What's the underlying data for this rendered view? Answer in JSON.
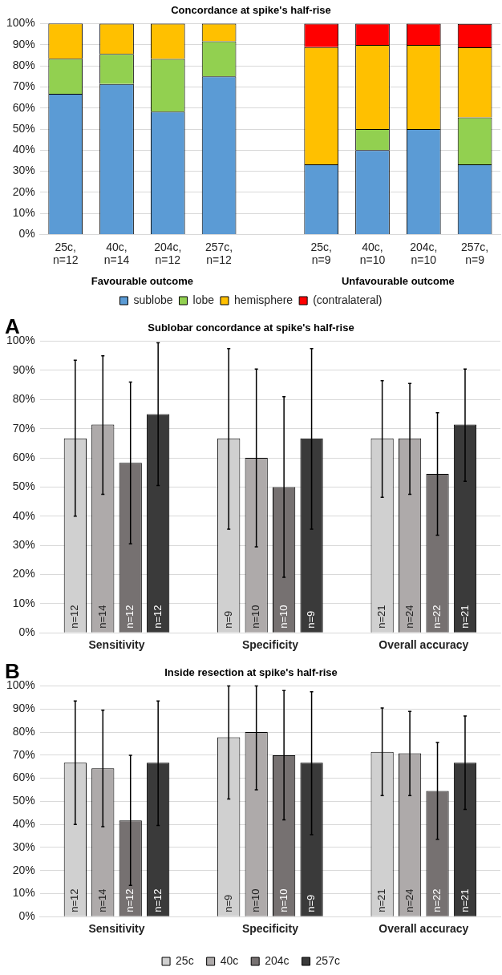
{
  "chart_data": [
    {
      "type": "bar",
      "title": "Concordance at spike's half-rise",
      "stacked": true,
      "grid": "y",
      "legend": "bottom",
      "categories": [
        "25c, n=12",
        "40c, n=14",
        "204c, n=12",
        "257c, n=12",
        null,
        "25c, n=9",
        "40c, n=10",
        "204c, n=10",
        "257c, n=9"
      ],
      "series": [
        {
          "name": "sublobe",
          "color": "#5b9bd5",
          "values": [
            66.7,
            71.4,
            58.3,
            75,
            null,
            33.3,
            40,
            50,
            33.3
          ]
        },
        {
          "name": "lobe",
          "color": "#92d050",
          "values": [
            16.7,
            14.3,
            25,
            16.7,
            null,
            0,
            10,
            0,
            22.2
          ]
        },
        {
          "name": "hemisphere",
          "color": "#ffc000",
          "values": [
            16.7,
            14.3,
            16.7,
            8.3,
            null,
            55.6,
            40,
            40,
            33.3
          ]
        },
        {
          "name": "(contralateral)",
          "color": "#ff0000",
          "values": [
            0,
            0,
            0,
            0,
            null,
            11.1,
            10,
            10,
            11.1
          ]
        }
      ],
      "ylim": [
        0,
        100
      ],
      "yticks": [
        {
          "value": 0,
          "label": "0%"
        },
        {
          "value": 10,
          "label": "10%"
        },
        {
          "value": 20,
          "label": "20%"
        },
        {
          "value": 30,
          "label": "30%"
        },
        {
          "value": 40,
          "label": "40%"
        },
        {
          "value": 50,
          "label": "50%"
        },
        {
          "value": 60,
          "label": "60%"
        },
        {
          "value": 70,
          "label": "70%"
        },
        {
          "value": 80,
          "label": "80%"
        },
        {
          "value": 90,
          "label": "90%"
        },
        {
          "value": 100,
          "label": "100%"
        }
      ],
      "annotations": [
        "Favourable outcome",
        "Unfavourable outcome"
      ]
    },
    {
      "type": "bar",
      "title": "Sublobar concordance at spike's half-rise",
      "grid": "y",
      "categories": [
        "Sensitivity",
        "Specificity",
        "Overall accuracy"
      ],
      "series": [
        {
          "color": "#d0d0d0",
          "values": [
            66.7,
            66.7,
            66.7
          ],
          "errors": [
            [
              40,
              93.5
            ],
            [
              35.5,
              97.5
            ],
            [
              46.5,
              86.5
            ]
          ]
        },
        {
          "color": "#aeaaaa",
          "values": [
            71.4,
            60,
            66.7
          ],
          "errors": [
            [
              47.5,
              95
            ],
            [
              29.5,
              90.5
            ],
            [
              47.5,
              85.5
            ]
          ]
        },
        {
          "color": "#767171",
          "values": [
            58.3,
            50,
            54.5
          ],
          "errors": [
            [
              30.5,
              86
            ],
            [
              19,
              81
            ],
            [
              33.5,
              75.5
            ]
          ]
        },
        {
          "color": "#3a3a3a",
          "values": [
            75,
            66.7,
            71.4
          ],
          "errors": [
            [
              50.5,
              99.5
            ],
            [
              35.5,
              97.5
            ],
            [
              52,
              90.5
            ]
          ]
        }
      ],
      "ylim": [
        0,
        100
      ],
      "yticks": [
        {
          "value": 0,
          "label": "0%"
        },
        {
          "value": 10,
          "label": "10%"
        },
        {
          "value": 20,
          "label": "20%"
        },
        {
          "value": 30,
          "label": "30%"
        },
        {
          "value": 40,
          "label": "40%"
        },
        {
          "value": 50,
          "label": "50%"
        },
        {
          "value": 60,
          "label": "60%"
        },
        {
          "value": 70,
          "label": "70%"
        },
        {
          "value": 80,
          "label": "80%"
        },
        {
          "value": 90,
          "label": "90%"
        },
        {
          "value": 100,
          "label": "100%"
        }
      ],
      "annotations": [
        "A",
        "n=12",
        "n=14",
        "n=12",
        "n=12",
        "n=9",
        "n=10",
        "n=10",
        "n=9",
        "n=21",
        "n=24",
        "n=22",
        "n=21"
      ]
    },
    {
      "type": "bar",
      "title": "Inside resection at spike's half-rise",
      "grid": "y",
      "legend": "bottom",
      "categories": [
        "Sensitivity",
        "Specificity",
        "Overall accuracy"
      ],
      "series": [
        {
          "name": "25c",
          "color": "#d0d0d0",
          "values": [
            66.7,
            77.8,
            71.4
          ],
          "errors": [
            [
              40,
              93.5
            ],
            [
              51,
              100
            ],
            [
              52.5,
              90.5
            ]
          ]
        },
        {
          "name": "40c",
          "color": "#aeaaaa",
          "values": [
            64.3,
            80,
            70.8
          ],
          "errors": [
            [
              39,
              89.5
            ],
            [
              55,
              100
            ],
            [
              52.5,
              89
            ]
          ]
        },
        {
          "name": "204c",
          "color": "#767171",
          "values": [
            41.7,
            70,
            54.5
          ],
          "errors": [
            [
              13.5,
              70
            ],
            [
              42,
              98
            ],
            [
              33.5,
              75.5
            ]
          ]
        },
        {
          "name": "257c",
          "color": "#3a3a3a",
          "values": [
            66.7,
            66.7,
            66.7
          ],
          "errors": [
            [
              39.5,
              93.5
            ],
            [
              35.5,
              97.5
            ],
            [
              46.5,
              87
            ]
          ]
        }
      ],
      "ylim": [
        0,
        100
      ],
      "yticks": [
        {
          "value": 0,
          "label": "0%"
        },
        {
          "value": 10,
          "label": "10%"
        },
        {
          "value": 20,
          "label": "20%"
        },
        {
          "value": 30,
          "label": "30%"
        },
        {
          "value": 40,
          "label": "40%"
        },
        {
          "value": 50,
          "label": "50%"
        },
        {
          "value": 60,
          "label": "60%"
        },
        {
          "value": 70,
          "label": "70%"
        },
        {
          "value": 80,
          "label": "80%"
        },
        {
          "value": 90,
          "label": "90%"
        },
        {
          "value": 100,
          "label": "100%"
        }
      ],
      "annotations": [
        "B",
        "n=12",
        "n=14",
        "n=12",
        "n=12",
        "n=9",
        "n=10",
        "n=10",
        "n=9",
        "n=21",
        "n=24",
        "n=22",
        "n=21"
      ]
    }
  ]
}
